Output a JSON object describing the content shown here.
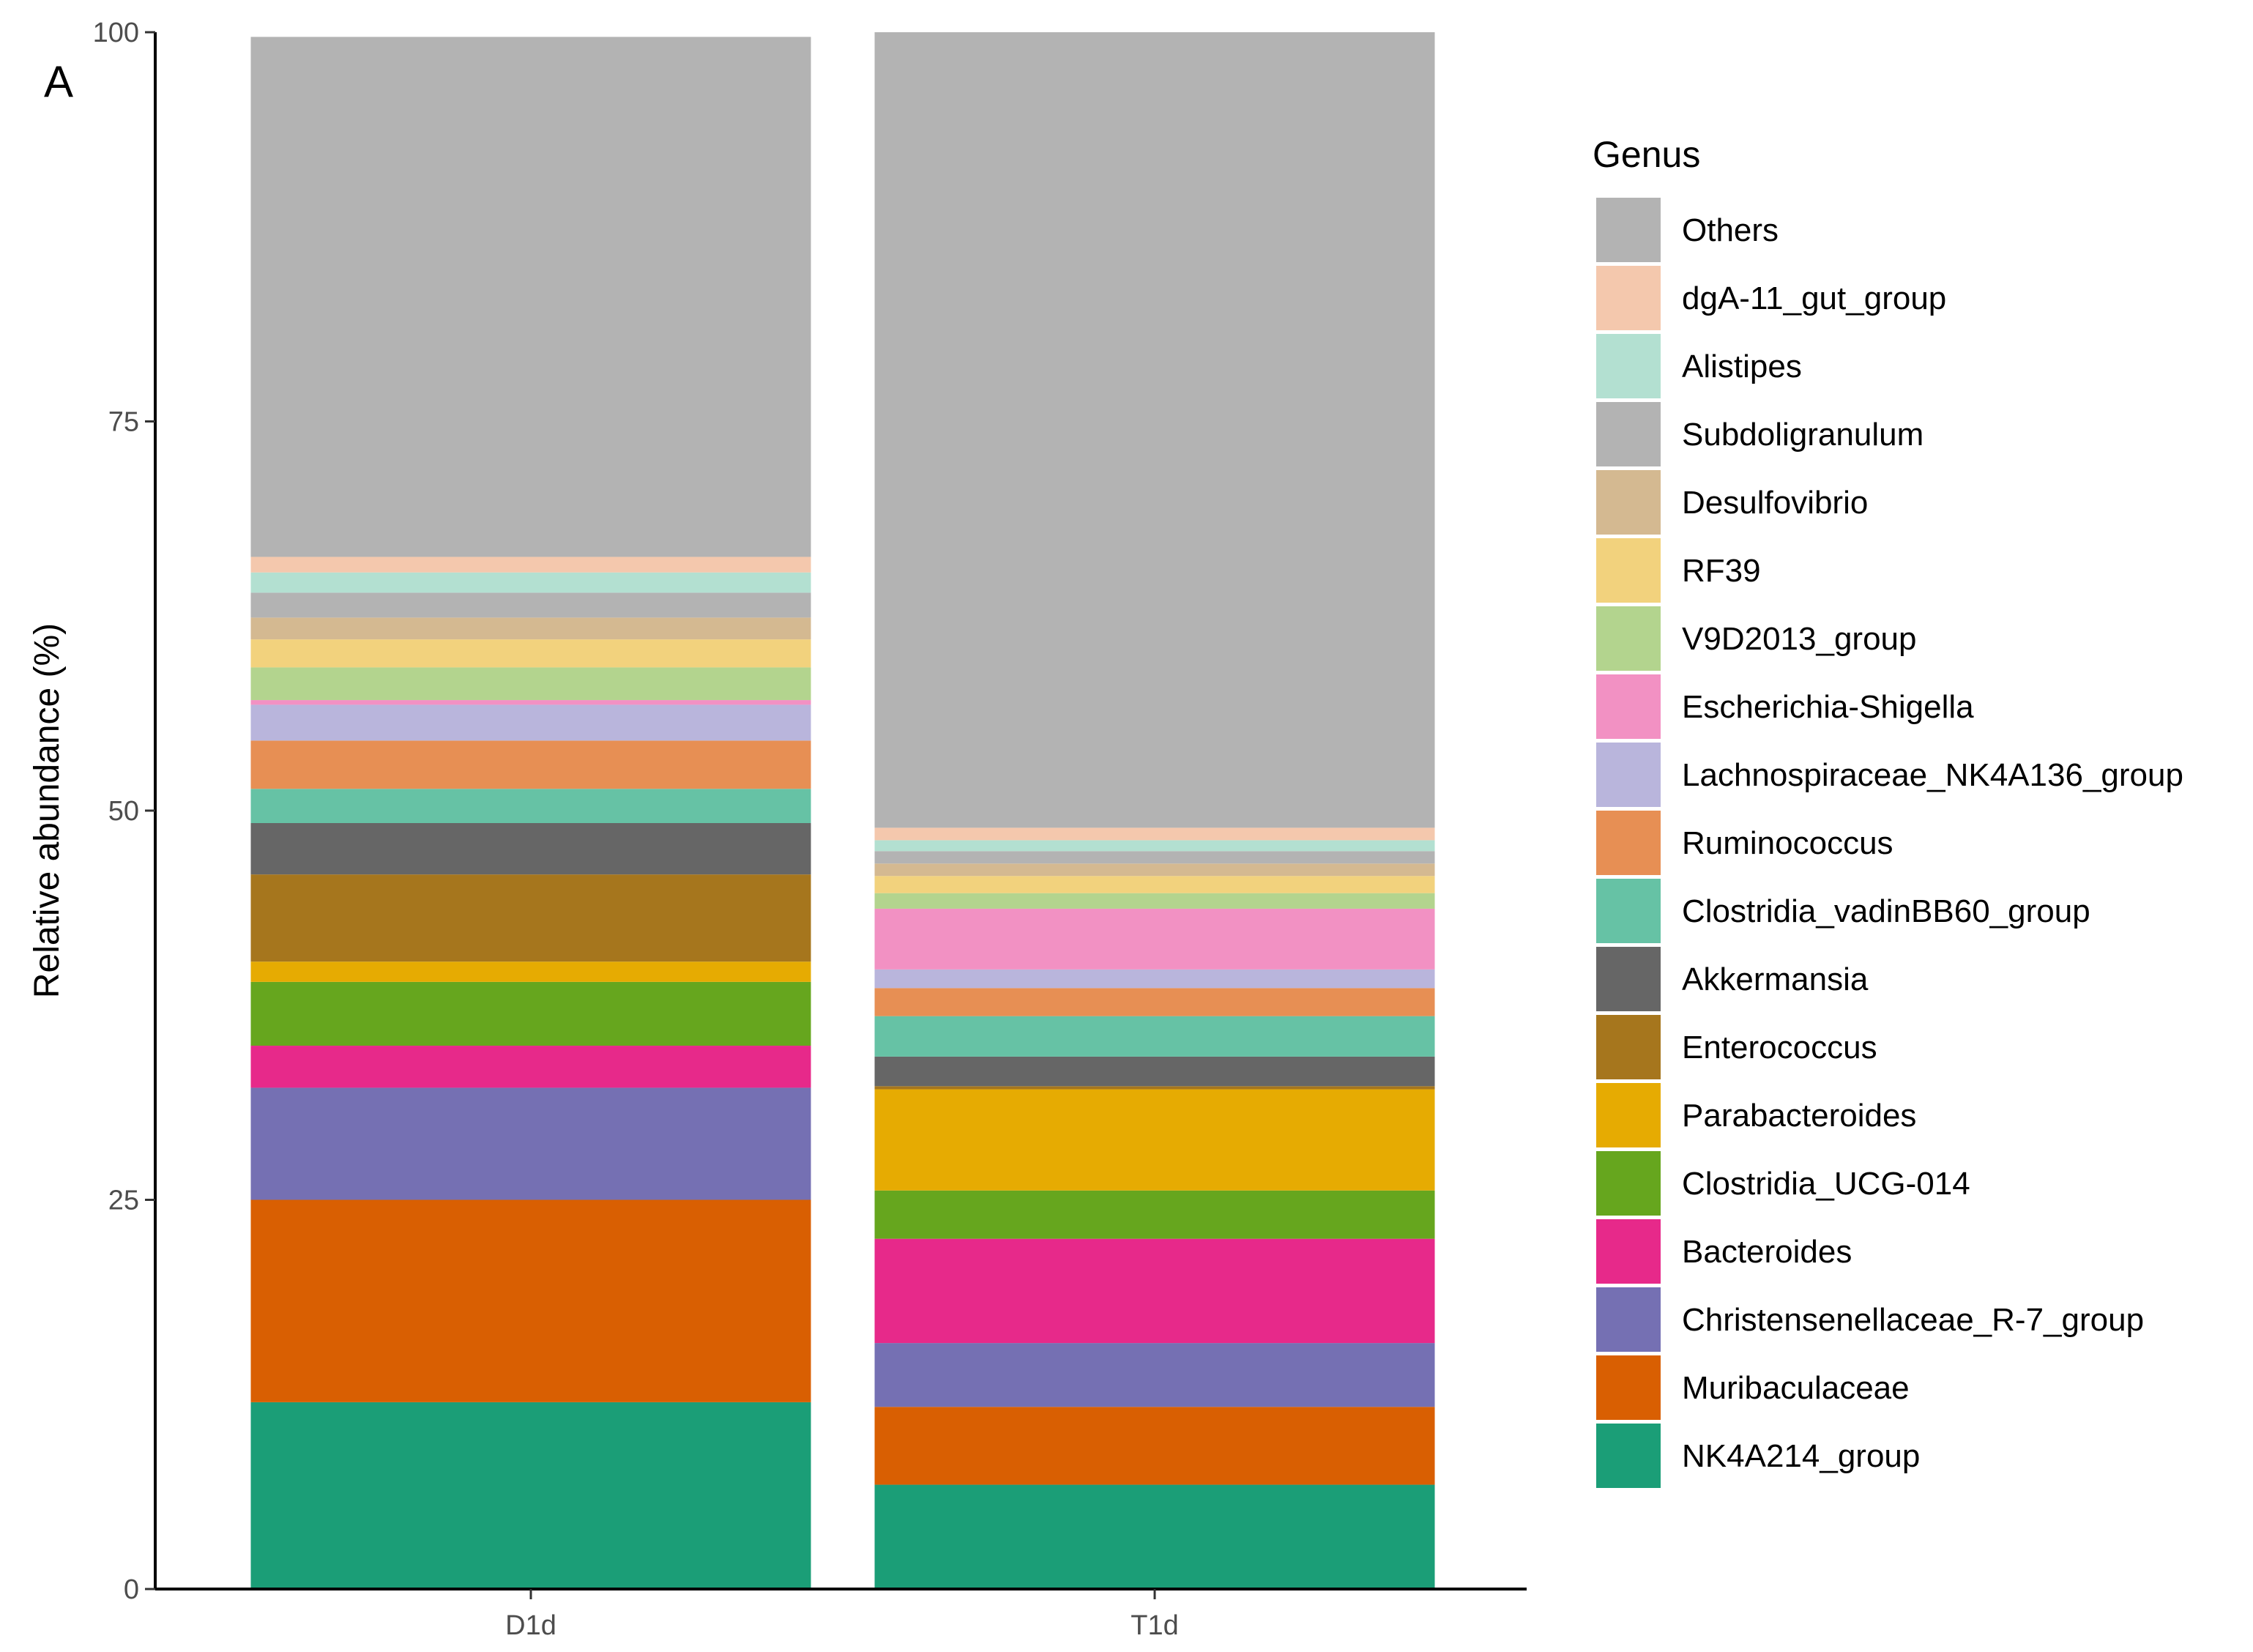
{
  "chart_data": {
    "type": "bar",
    "stacked": true,
    "panel_label": "A",
    "title": "",
    "xlabel": "",
    "ylabel": "Relative abundance (%)",
    "ylim": [
      0,
      100
    ],
    "yticks": [
      "0",
      "25",
      "50",
      "75",
      "100"
    ],
    "categories": [
      "D1d",
      "T1d"
    ],
    "legend_title": "Genus",
    "legend_position": "right",
    "series": [
      {
        "name": "NK4A214_group",
        "color": "#1b9e77",
        "values": [
          12.0,
          6.7
        ]
      },
      {
        "name": "Muribaculaceae",
        "color": "#d95f02",
        "values": [
          13.0,
          5.0
        ]
      },
      {
        "name": "Christensenellaceae_R-7_group",
        "color": "#7570b3",
        "values": [
          7.2,
          4.1
        ]
      },
      {
        "name": "Bacteroides",
        "color": "#e7298a",
        "values": [
          2.7,
          6.7
        ]
      },
      {
        "name": "Clostridia_UCG-014",
        "color": "#66a61e",
        "values": [
          4.1,
          3.1
        ]
      },
      {
        "name": "Parabacteroides",
        "color": "#e6ab02",
        "values": [
          1.3,
          6.5
        ]
      },
      {
        "name": "Enterococcus",
        "color": "#a6761d",
        "values": [
          5.6,
          0.2
        ]
      },
      {
        "name": "Akkermansia",
        "color": "#666666",
        "values": [
          3.3,
          1.9
        ]
      },
      {
        "name": "Clostridia_vadinBB60_group",
        "color": "#66c2a5",
        "values": [
          2.2,
          2.6
        ]
      },
      {
        "name": "Ruminococcus",
        "color": "#e78f54",
        "values": [
          3.1,
          1.8
        ]
      },
      {
        "name": "Lachnospiraceae_NK4A136_group",
        "color": "#b9b5dc",
        "values": [
          2.3,
          1.2
        ]
      },
      {
        "name": "Escherichia-Shigella",
        "color": "#f291c3",
        "values": [
          0.3,
          3.9
        ]
      },
      {
        "name": "V9D2013_group",
        "color": "#b3d48e",
        "values": [
          2.1,
          1.0
        ]
      },
      {
        "name": "RF39",
        "color": "#f2d27d",
        "values": [
          1.8,
          1.1
        ]
      },
      {
        "name": "Desulfovibrio",
        "color": "#d4b991",
        "values": [
          1.4,
          0.8
        ]
      },
      {
        "name": "Subdoligranulum",
        "color": "#b3b3b3",
        "values": [
          1.6,
          0.8
        ]
      },
      {
        "name": "Alistipes",
        "color": "#b3e0d1",
        "values": [
          1.3,
          0.7
        ]
      },
      {
        "name": "dgA-11_gut_group",
        "color": "#f4c8ad",
        "values": [
          1.0,
          0.8
        ]
      },
      {
        "name": "Others",
        "color": "#b3b3b3",
        "values": [
          33.4,
          51.1
        ]
      }
    ]
  }
}
